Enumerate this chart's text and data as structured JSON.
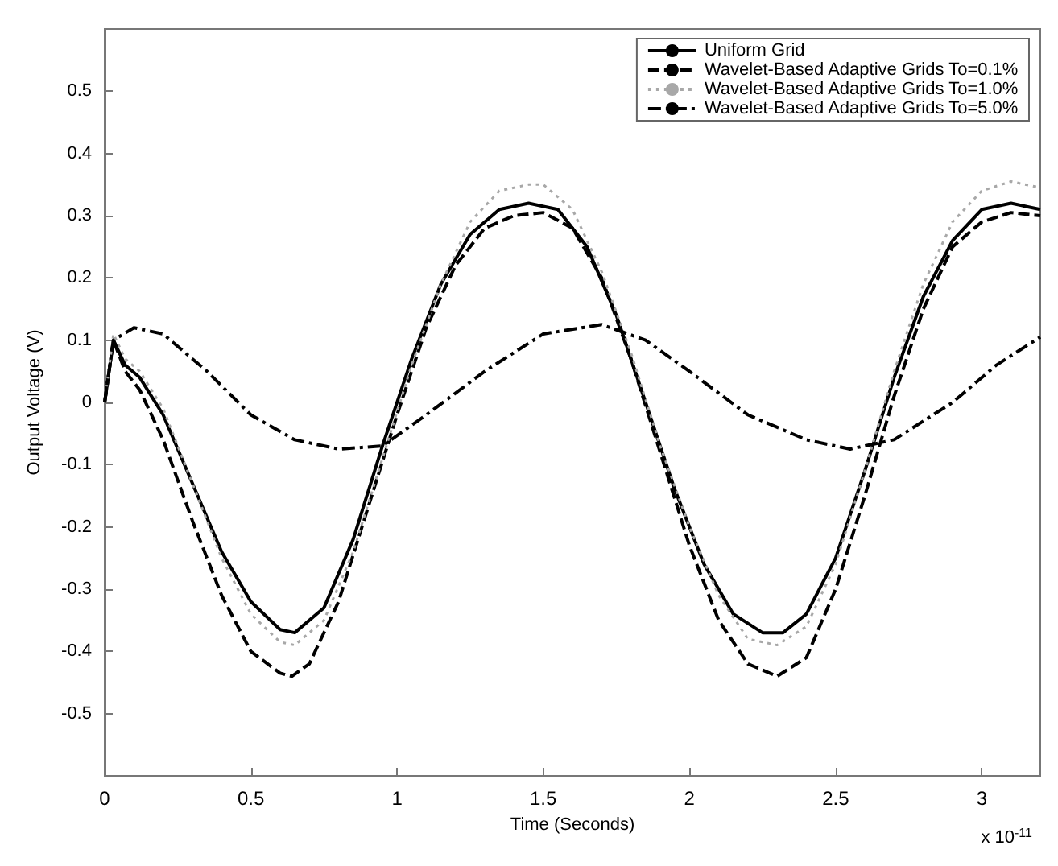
{
  "chart_data": {
    "type": "line",
    "xlabel": "Time (Seconds)",
    "ylabel": "Output Voltage (V)",
    "xlim": [
      0,
      3.2
    ],
    "xticks": [
      0,
      0.5,
      1,
      1.5,
      2,
      2.5,
      3
    ],
    "ylim": [
      -0.6,
      0.6
    ],
    "yticks": [
      -0.5,
      -0.4,
      -0.3,
      -0.2,
      -0.1,
      0,
      0.1,
      0.2,
      0.3,
      0.4,
      0.5
    ],
    "grid": false,
    "legend": "top right",
    "marker": "none",
    "annotations": [
      "x 10$^{-11}$"
    ],
    "series": [
      {
        "name": "Uniform Grid",
        "color": "#000000",
        "line_style": "solid",
        "x": [
          0,
          0.03,
          0.07,
          0.12,
          0.2,
          0.3,
          0.4,
          0.5,
          0.6,
          0.65,
          0.75,
          0.85,
          0.95,
          1.05,
          1.15,
          1.25,
          1.35,
          1.45,
          1.55,
          1.65,
          1.75,
          1.85,
          1.95,
          2.05,
          2.15,
          2.25,
          2.32,
          2.4,
          2.5,
          2.6,
          2.7,
          2.8,
          2.9,
          3.0,
          3.1,
          3.2
        ],
        "values": [
          0,
          0.1,
          0.06,
          0.04,
          -0.02,
          -0.13,
          -0.24,
          -0.32,
          -0.365,
          -0.37,
          -0.33,
          -0.22,
          -0.07,
          0.07,
          0.19,
          0.27,
          0.31,
          0.32,
          0.31,
          0.25,
          0.14,
          0,
          -0.14,
          -0.26,
          -0.34,
          -0.37,
          -0.37,
          -0.34,
          -0.25,
          -0.11,
          0.04,
          0.17,
          0.26,
          0.31,
          0.32,
          0.31
        ]
      },
      {
        "name": "Wavelet-Based Adaptive Grids To=0.1%",
        "color": "#000000",
        "line_style": "dashed",
        "x": [
          0,
          0.03,
          0.07,
          0.12,
          0.2,
          0.3,
          0.4,
          0.5,
          0.6,
          0.64,
          0.7,
          0.8,
          0.9,
          1.0,
          1.1,
          1.2,
          1.3,
          1.4,
          1.5,
          1.6,
          1.7,
          1.8,
          1.9,
          2.0,
          2.1,
          2.2,
          2.3,
          2.4,
          2.5,
          2.6,
          2.7,
          2.8,
          2.9,
          3.0,
          3.1,
          3.2
        ],
        "values": [
          0,
          0.1,
          0.05,
          0.02,
          -0.06,
          -0.19,
          -0.31,
          -0.4,
          -0.435,
          -0.44,
          -0.42,
          -0.32,
          -0.17,
          -0.02,
          0.12,
          0.22,
          0.28,
          0.3,
          0.305,
          0.28,
          0.2,
          0.07,
          -0.08,
          -0.23,
          -0.35,
          -0.42,
          -0.44,
          -0.41,
          -0.3,
          -0.15,
          0.01,
          0.15,
          0.25,
          0.29,
          0.305,
          0.3
        ]
      },
      {
        "name": "Wavelet-Based Adaptive Grids To=1.0%",
        "color": "#a8a8a8",
        "line_style": "dotted",
        "x": [
          0,
          0.03,
          0.07,
          0.12,
          0.2,
          0.3,
          0.4,
          0.5,
          0.6,
          0.65,
          0.75,
          0.85,
          0.95,
          1.05,
          1.15,
          1.25,
          1.35,
          1.45,
          1.5,
          1.6,
          1.7,
          1.8,
          1.9,
          2.0,
          2.1,
          2.2,
          2.3,
          2.4,
          2.5,
          2.6,
          2.7,
          2.8,
          2.9,
          3.0,
          3.1,
          3.2
        ],
        "values": [
          0,
          0.11,
          0.07,
          0.05,
          -0.01,
          -0.13,
          -0.25,
          -0.34,
          -0.385,
          -0.39,
          -0.35,
          -0.24,
          -0.09,
          0.06,
          0.19,
          0.29,
          0.34,
          0.35,
          0.35,
          0.31,
          0.21,
          0.08,
          -0.07,
          -0.2,
          -0.31,
          -0.38,
          -0.39,
          -0.36,
          -0.26,
          -0.11,
          0.05,
          0.19,
          0.29,
          0.34,
          0.355,
          0.345
        ]
      },
      {
        "name": "Wavelet-Based Adaptive Grids To=5.0%",
        "color": "#000000",
        "line_style": "dashdot",
        "x": [
          0,
          0.03,
          0.1,
          0.2,
          0.35,
          0.5,
          0.65,
          0.8,
          0.95,
          1.1,
          1.3,
          1.5,
          1.7,
          1.85,
          2.0,
          2.2,
          2.4,
          2.55,
          2.7,
          2.9,
          3.05,
          3.2
        ],
        "values": [
          0,
          0.1,
          0.12,
          0.11,
          0.05,
          -0.02,
          -0.06,
          -0.075,
          -0.07,
          -0.02,
          0.05,
          0.11,
          0.125,
          0.1,
          0.05,
          -0.02,
          -0.06,
          -0.075,
          -0.06,
          0,
          0.06,
          0.105
        ]
      }
    ]
  }
}
